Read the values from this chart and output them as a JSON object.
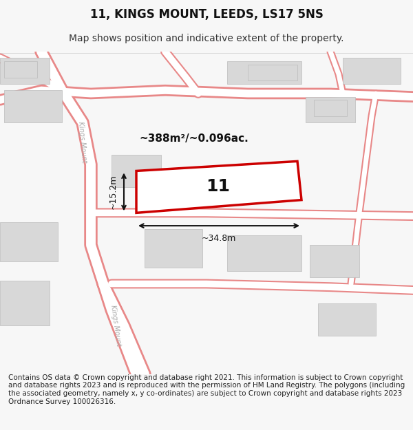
{
  "title": "11, KINGS MOUNT, LEEDS, LS17 5NS",
  "subtitle": "Map shows position and indicative extent of the property.",
  "footer": "Contains OS data © Crown copyright and database right 2021. This information is subject to Crown copyright and database rights 2023 and is reproduced with the permission of HM Land Registry. The polygons (including the associated geometry, namely x, y co-ordinates) are subject to Crown copyright and database rights 2023 Ordnance Survey 100026316.",
  "bg_color": "#f7f7f7",
  "map_bg": "#ffffff",
  "road_color": "#f5c0c0",
  "road_outline": "#e88888",
  "building_color": "#d8d8d8",
  "building_outline": "#cccccc",
  "highlight_color": "#cc0000",
  "highlight_fill": "none",
  "street_label_color": "#aaaaaa",
  "measure_color": "#111111",
  "label_number": "11",
  "area_label": "~388m²/~0.096ac.",
  "width_label": "~34.8m",
  "height_label": "~15.2m",
  "title_fontsize": 12,
  "subtitle_fontsize": 10,
  "footer_fontsize": 7.5
}
